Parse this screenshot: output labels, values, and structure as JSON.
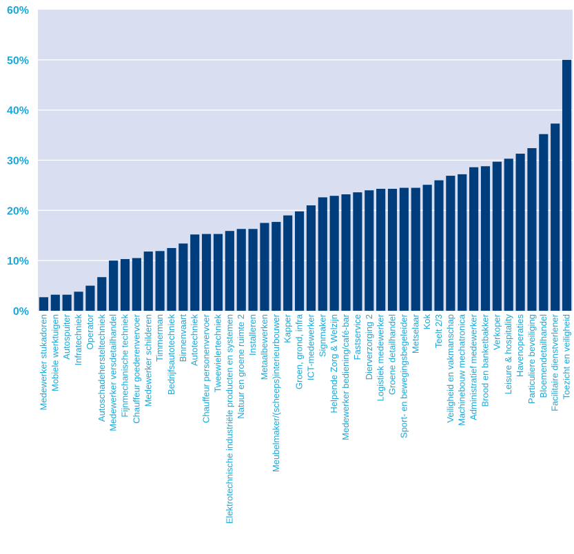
{
  "colors": {
    "plot_background": "#d9dff0",
    "bar": "#003d7c",
    "tick_label": "#1aa8d8",
    "gridline": "#ffffff"
  },
  "chart_data": {
    "type": "bar",
    "title": "",
    "xlabel": "",
    "ylabel": "",
    "ylim": [
      0,
      60
    ],
    "yticks": [
      "0%",
      "10%",
      "20%",
      "30%",
      "40%",
      "50%",
      "60%"
    ],
    "grid": true,
    "legend": "none",
    "categories": [
      "Medewerker stukadoren",
      "Mobiele werktuigen",
      "Autospuiter",
      "Infratechniek",
      "Operator",
      "Autoschadehersteltechniek",
      "Medewerker versdetailhandel",
      "Fijnmechanische techniek",
      "Chauffeur goederenvervoer",
      "Medewerker schilderen",
      "Timmerman",
      "Bedrijfsautotechniek",
      "Binnenvaart",
      "Autotechniek",
      "Chauffeur personenvervoer",
      "Tweewielertechniek",
      "Elektrotechnische industriële producten en systemen",
      "Natuur en groene ruimte 2",
      "Installeren",
      "Metaalbewerken",
      "Meubelmaker/(scheeps)interieurbouwer",
      "Kapper",
      "Groen, grond, infra",
      "ICT-medewerker",
      "Signmaker",
      "Helpende Zorg & Welzijn",
      "Medewerker bediening/café-bar",
      "Fastservice",
      "Dierverzorging 2",
      "Logistiek medewerker",
      "Groene detailhandel",
      "Sport- en bewegingsbegeleider",
      "Metselaar",
      "Kok",
      "Teelt 2/3",
      "Veiligheid en vakmanschap",
      "Machinebouw mechatronica",
      "Administratief medewerker",
      "Brood en banketbakker",
      "Verkoper",
      "Leisure & hospitality",
      "Havenoperaties",
      "Particuliere beveiliging",
      "Bloemendetailhandel",
      "Facilitaire dienstverlener",
      "Toezicht en veiligheid"
    ],
    "values": [
      2.7,
      3.2,
      3.2,
      3.8,
      5.0,
      6.7,
      10.0,
      10.3,
      10.5,
      11.8,
      11.9,
      12.5,
      13.4,
      15.2,
      15.3,
      15.3,
      15.9,
      16.3,
      16.3,
      17.5,
      17.7,
      19.0,
      19.8,
      21.0,
      22.6,
      22.9,
      23.2,
      23.6,
      24.0,
      24.3,
      24.3,
      24.5,
      24.5,
      25.1,
      26.0,
      26.9,
      27.2,
      28.6,
      28.8,
      29.7,
      30.3,
      31.3,
      32.4,
      35.2,
      37.3,
      50.0
    ]
  }
}
